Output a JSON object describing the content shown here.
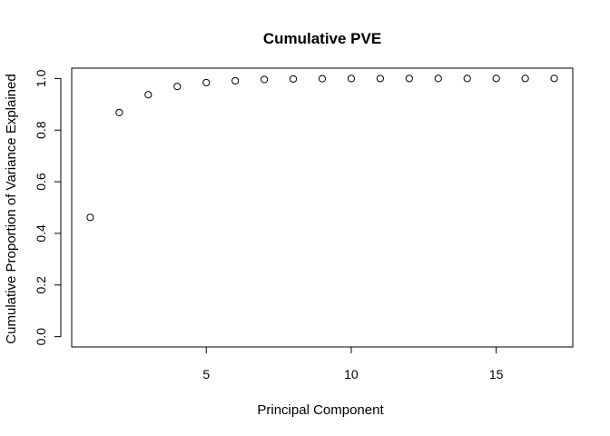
{
  "chart_data": {
    "type": "scatter",
    "title": "Cumulative PVE",
    "xlabel": "Principal Component",
    "ylabel": "Cumulative Proportion of Variance Explained",
    "xlim": [
      0.36,
      17.64
    ],
    "ylim": [
      -0.04,
      1.04
    ],
    "xticks": [
      5,
      10,
      15
    ],
    "yticks": [
      0.0,
      0.2,
      0.4,
      0.6,
      0.8,
      1.0
    ],
    "ytick_labels": [
      "0.0",
      "0.2",
      "0.4",
      "0.6",
      "0.8",
      "1.0"
    ],
    "grid": false,
    "marker": "open-circle",
    "x": [
      1,
      2,
      3,
      4,
      5,
      6,
      7,
      8,
      9,
      10,
      11,
      12,
      13,
      14,
      15,
      16,
      17
    ],
    "y": [
      0.462,
      0.868,
      0.937,
      0.969,
      0.984,
      0.991,
      0.996,
      0.998,
      0.999,
      0.9995,
      0.9997,
      0.9998,
      0.9999,
      0.99995,
      1.0,
      1.0,
      1.0
    ]
  }
}
